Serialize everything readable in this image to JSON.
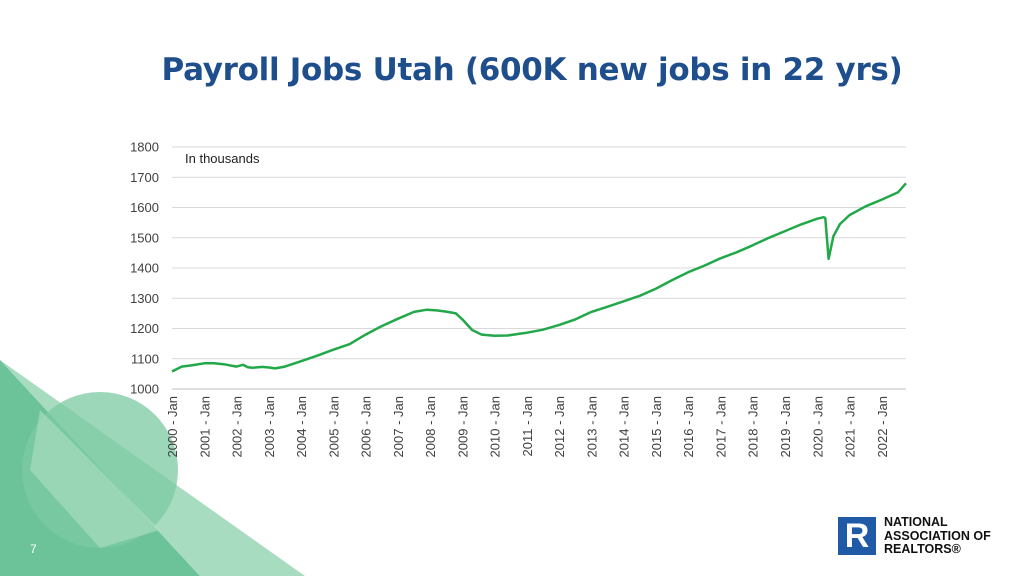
{
  "slide": {
    "title": "Payroll Jobs Utah (600K new jobs in 22 yrs)",
    "page_number": "7"
  },
  "logo": {
    "lines": [
      "NATIONAL",
      "ASSOCIATION OF",
      "REALTORS®"
    ],
    "mark": "R",
    "colors": {
      "mark": "#1f5aa6"
    }
  },
  "colors": {
    "title": "#1f4e8c",
    "line": "#22a84a",
    "gridline": "#d9d9d9",
    "decor_green_dark": "#6cc39a",
    "decor_green_light": "#a8dcc0"
  },
  "chart_data": {
    "type": "line",
    "title": "",
    "annotation": "In thousands",
    "xlabel": "",
    "ylabel": "",
    "ylim": [
      1000,
      1800
    ],
    "yticks": [
      1000,
      1100,
      1200,
      1300,
      1400,
      1500,
      1600,
      1700,
      1800
    ],
    "xlim": [
      2000.0,
      2022.75
    ],
    "xtick_labels": [
      "2000 - Jan",
      "2001 - Jan",
      "2002 - Jan",
      "2003 - Jan",
      "2004 - Jan",
      "2005 - Jan",
      "2006 - Jan",
      "2007 - Jan",
      "2008 - Jan",
      "2009 - Jan",
      "2010 - Jan",
      "2011 - Jan",
      "2012 - Jan",
      "2013 - Jan",
      "2014 - Jan",
      "2015 - Jan",
      "2016 - Jan",
      "2017 - Jan",
      "2018 - Jan",
      "2019 - Jan",
      "2020 - Jan",
      "2021 - Jan",
      "2022 - Jan"
    ],
    "grid": true,
    "legend": "none",
    "series": [
      {
        "x": [
          2000.0,
          2000.3,
          2000.6,
          2001.0,
          2001.3,
          2001.6,
          2002.0,
          2002.2,
          2002.35,
          2002.5,
          2002.8,
          2003.0,
          2003.2,
          2003.5,
          2004.0,
          2004.5,
          2005.0,
          2005.5,
          2006.0,
          2006.5,
          2007.0,
          2007.5,
          2007.9,
          2008.2,
          2008.5,
          2008.8,
          2009.0,
          2009.3,
          2009.6,
          2010.0,
          2010.4,
          2010.8,
          2011.0,
          2011.5,
          2012.0,
          2012.5,
          2013.0,
          2013.5,
          2014.0,
          2014.5,
          2015.0,
          2015.5,
          2016.0,
          2016.5,
          2017.0,
          2017.5,
          2018.0,
          2018.5,
          2019.0,
          2019.5,
          2020.0,
          2020.2,
          2020.25,
          2020.35,
          2020.5,
          2020.7,
          2021.0,
          2021.5,
          2022.0,
          2022.5,
          2022.75
        ],
        "values": [
          1058,
          1074,
          1078,
          1085,
          1085,
          1082,
          1074,
          1080,
          1072,
          1070,
          1073,
          1071,
          1068,
          1074,
          1092,
          1110,
          1130,
          1148,
          1180,
          1208,
          1232,
          1255,
          1262,
          1260,
          1256,
          1250,
          1230,
          1195,
          1180,
          1176,
          1177,
          1183,
          1186,
          1196,
          1212,
          1230,
          1255,
          1272,
          1290,
          1308,
          1332,
          1360,
          1386,
          1408,
          1432,
          1452,
          1475,
          1500,
          1522,
          1544,
          1563,
          1568,
          1565,
          1430,
          1505,
          1545,
          1575,
          1604,
          1626,
          1650,
          1680
        ]
      }
    ]
  }
}
